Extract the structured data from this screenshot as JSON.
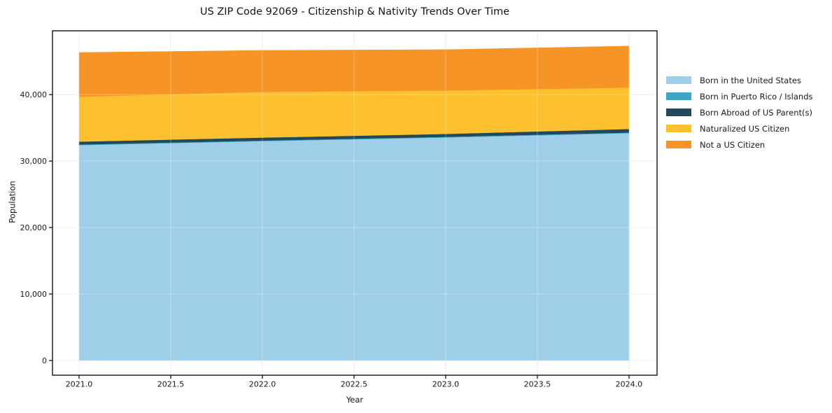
{
  "title": "US ZIP Code 92069 - Citizenship & Nativity Trends Over Time",
  "chart_data": {
    "type": "area",
    "stacked": true,
    "title": "US ZIP Code 92069 - Citizenship & Nativity Trends Over Time",
    "xlabel": "Year",
    "ylabel": "Population",
    "x": [
      2021,
      2022,
      2023,
      2024
    ],
    "series": [
      {
        "name": "Born in the United States",
        "color": "#9FCFE8",
        "values": [
          32400,
          33000,
          33550,
          34200
        ]
      },
      {
        "name": "Born in Puerto Rico / Islands",
        "color": "#3BA7C3",
        "values": [
          100,
          100,
          100,
          100
        ]
      },
      {
        "name": "Born Abroad of US Parent(s)",
        "color": "#22485C",
        "values": [
          430,
          440,
          440,
          530
        ]
      },
      {
        "name": "Naturalized US Citizen",
        "color": "#FDC02E",
        "values": [
          6750,
          6880,
          6540,
          6230
        ]
      },
      {
        "name": "Not a US Citizen",
        "color": "#F79428",
        "values": [
          6650,
          6230,
          6140,
          6240
        ]
      }
    ],
    "xticks": [
      2021.0,
      2021.5,
      2022.0,
      2022.5,
      2023.0,
      2023.5,
      2024.0
    ],
    "xtick_labels": [
      "2021.0",
      "2021.5",
      "2022.0",
      "2022.5",
      "2023.0",
      "2023.5",
      "2024.0"
    ],
    "yticks": [
      0,
      10000,
      20000,
      30000,
      40000
    ],
    "ytick_labels": [
      "0",
      "10,000",
      "20,000",
      "30,000",
      "40,000"
    ],
    "xlim": [
      2020.855,
      2024.153
    ],
    "ylim": [
      -2216,
      49600
    ],
    "grid": true,
    "legend_position": "right",
    "frame_color": "#000000",
    "grid_color": "#E6E6E6"
  }
}
